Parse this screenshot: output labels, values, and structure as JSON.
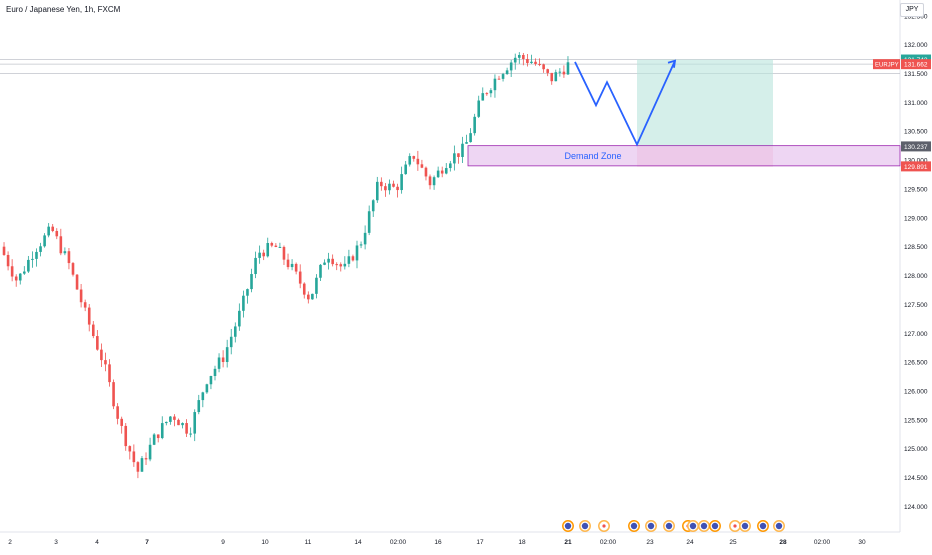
{
  "header": {
    "symbol_title": "Euro / Japanese Yen, 1h, FXCM",
    "currency": "JPY"
  },
  "colors": {
    "up": "#26a69a",
    "down": "#ef5350",
    "projection": "#2962ff",
    "target_zone": "#b9e4dc",
    "stop_zone": "#f7b7c4",
    "demand_zone": "#e8c8ef",
    "demand_border": "#9c27b0",
    "demand_text": "#2962ff"
  },
  "chart_data": {
    "type": "candlestick",
    "symbol": "EURJPY",
    "interval": "1h",
    "ylim": [
      123.8,
      132.6
    ],
    "y_ticks": [
      "132.500",
      "132.000",
      "131.500",
      "131.000",
      "130.500",
      "130.000",
      "129.500",
      "129.000",
      "128.500",
      "128.000",
      "127.500",
      "127.000",
      "126.500",
      "126.000",
      "125.500",
      "125.000",
      "124.500",
      "124.000"
    ],
    "x_ticks": [
      "2",
      "3",
      "4",
      "7",
      "9",
      "10",
      "11",
      "14",
      "02:00",
      "16",
      "17",
      "18",
      "21",
      "02:00",
      "23",
      "24",
      "25",
      "28",
      "02:00",
      "30"
    ],
    "price_anchors": [
      {
        "label": "2",
        "value": 128.5
      },
      {
        "label": "",
        "value": 127.9
      },
      {
        "label": "3",
        "value": 128.45
      },
      {
        "label": "",
        "value": 128.8
      },
      {
        "label": "4",
        "value": 128.2
      },
      {
        "label": "",
        "value": 127.3
      },
      {
        "label": "",
        "value": 126.5
      },
      {
        "label": "",
        "value": 125.4
      },
      {
        "label": "7",
        "value": 124.6
      },
      {
        "label": "",
        "value": 125.2
      },
      {
        "label": "",
        "value": 125.6
      },
      {
        "label": "",
        "value": 125.3
      },
      {
        "label": "",
        "value": 126.2
      },
      {
        "label": "9",
        "value": 126.6
      },
      {
        "label": "",
        "value": 127.4
      },
      {
        "label": "10",
        "value": 128.4
      },
      {
        "label": "",
        "value": 128.5
      },
      {
        "label": "11",
        "value": 128.1
      },
      {
        "label": "",
        "value": 127.6
      },
      {
        "label": "",
        "value": 128.4
      },
      {
        "label": "",
        "value": 128.1
      },
      {
        "label": "14",
        "value": 128.6
      },
      {
        "label": "",
        "value": 129.6
      },
      {
        "label": "02:00",
        "value": 129.5
      },
      {
        "label": "",
        "value": 130.1
      },
      {
        "label": "16",
        "value": 129.6
      },
      {
        "label": "",
        "value": 130.0
      },
      {
        "label": "17",
        "value": 130.2
      },
      {
        "label": "",
        "value": 131.1
      },
      {
        "label": "",
        "value": 131.5
      },
      {
        "label": "18",
        "value": 131.8
      },
      {
        "label": "",
        "value": 131.7
      },
      {
        "label": "",
        "value": 131.4
      },
      {
        "label": "21",
        "value": 131.65
      }
    ],
    "current_price": "131.662",
    "symbol_tag": "EURJPY",
    "price_labels": {
      "target": "131.742",
      "entry": "130.237",
      "stop": "129.891"
    },
    "demand_zone": {
      "label": "Demand Zone",
      "top": 130.25,
      "bottom": 129.9
    },
    "trade_setup": {
      "entry": 130.237,
      "target": 131.742,
      "stop": 129.891
    },
    "projection_path": [
      131.7,
      130.95,
      131.35,
      130.27,
      131.72
    ],
    "grid": false,
    "event_markers_count": 16
  }
}
